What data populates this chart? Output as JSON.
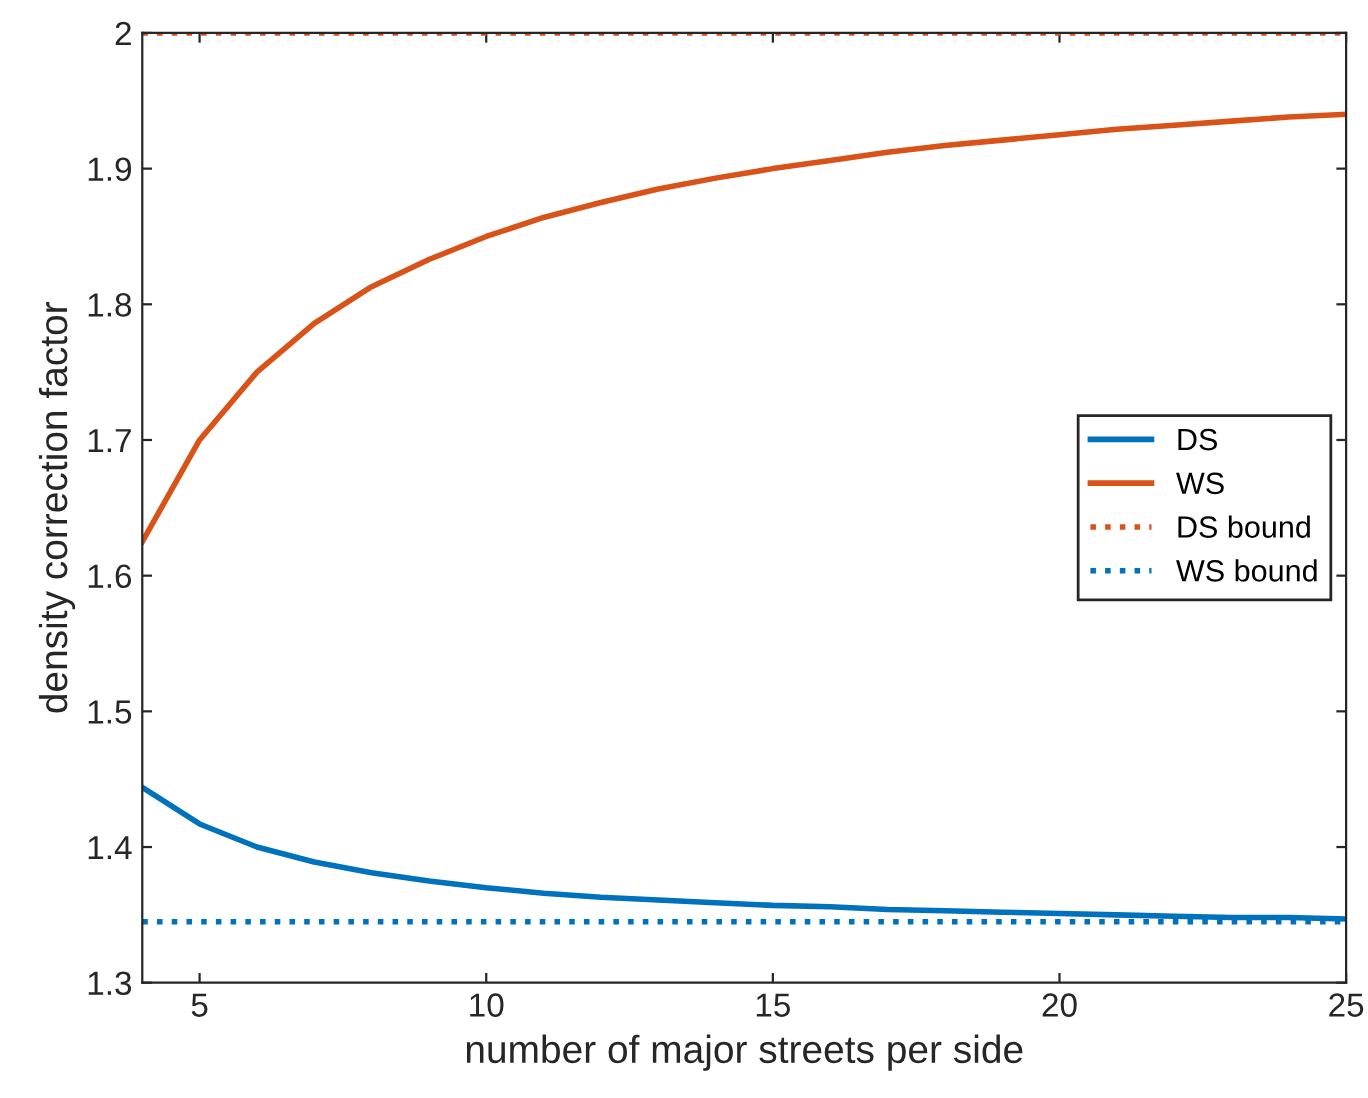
{
  "chart_data": {
    "type": "line",
    "xlabel": "number of major streets per side",
    "ylabel": "density correction factor",
    "x": [
      4,
      5,
      6,
      7,
      8,
      9,
      10,
      11,
      12,
      13,
      14,
      15,
      16,
      17,
      18,
      19,
      20,
      21,
      22,
      23,
      24,
      25
    ],
    "series": [
      {
        "name": "DS",
        "color": "#0072bd",
        "values": [
          1.444,
          1.417,
          1.4,
          1.389,
          1.381,
          1.375,
          1.37,
          1.366,
          1.363,
          1.361,
          1.359,
          1.357,
          1.356,
          1.354,
          1.353,
          1.352,
          1.351,
          1.35,
          1.349,
          1.348,
          1.348,
          1.347
        ]
      },
      {
        "name": "WS",
        "color": "#d95319",
        "values": [
          1.625,
          1.7,
          1.75,
          1.786,
          1.813,
          1.833,
          1.85,
          1.864,
          1.875,
          1.885,
          1.893,
          1.9,
          1.906,
          1.912,
          1.917,
          1.921,
          1.925,
          1.929,
          1.932,
          1.935,
          1.938,
          1.94
        ]
      }
    ],
    "ref_lines": [
      {
        "axis": "y",
        "value": 2,
        "label": "DS bound",
        "color": "#d95319",
        "line_style": "dotted"
      },
      {
        "axis": "y",
        "value": 1.345,
        "label": "WS bound",
        "color": "#0072bd",
        "line_style": "dotted"
      }
    ],
    "xlim": [
      4,
      25
    ],
    "ylim": [
      1.3,
      2
    ],
    "xticks": [
      5,
      10,
      15,
      20,
      25
    ],
    "yticks": [
      1.3,
      1.4,
      1.5,
      1.6,
      1.7,
      1.8,
      1.9,
      {
        "value": 2,
        "label": "2"
      }
    ],
    "grid": false,
    "legend": "right",
    "line_style": "solid",
    "marker": "none"
  }
}
